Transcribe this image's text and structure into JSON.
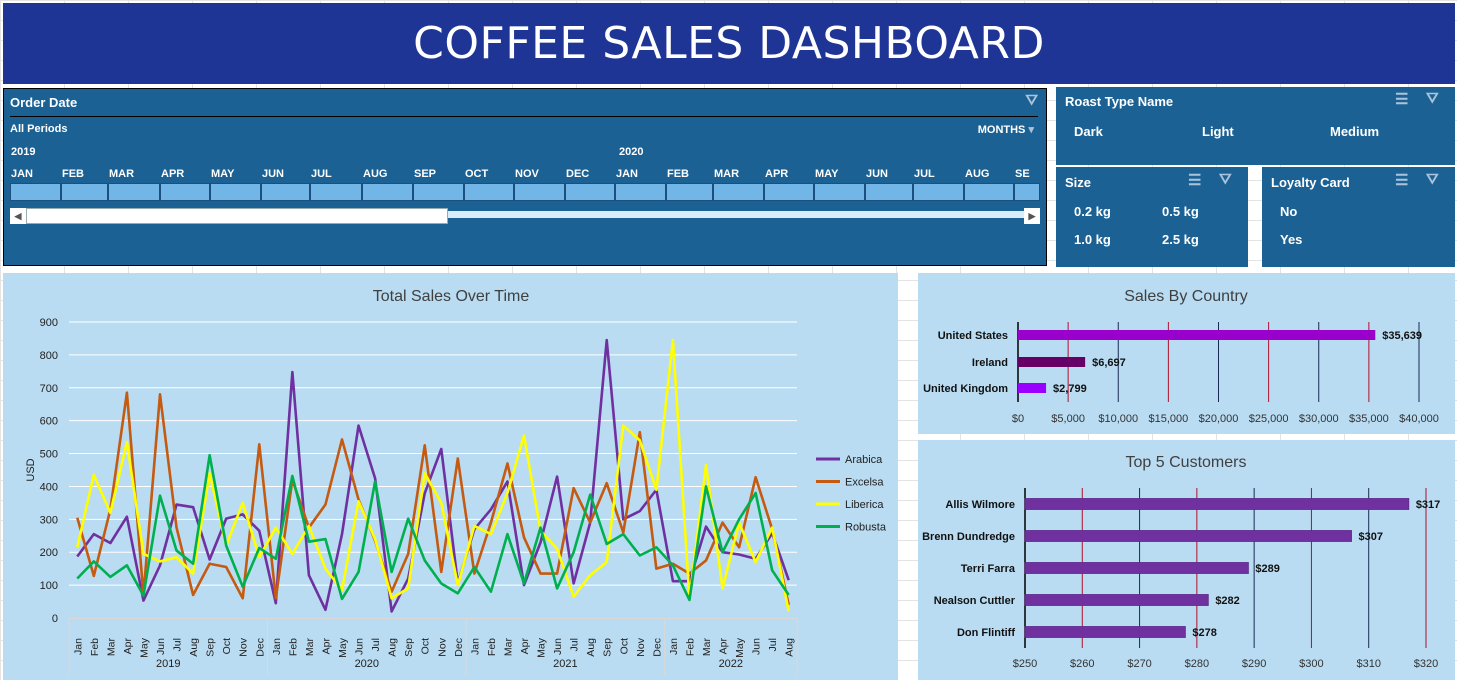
{
  "title": "COFFEE SALES DASHBOARD",
  "timeline": {
    "header": "Order Date",
    "period": "All Periods",
    "level": "MONTHS",
    "years": [
      "2019",
      "2020"
    ],
    "months": [
      "JAN",
      "FEB",
      "MAR",
      "APR",
      "MAY",
      "JUN",
      "JUL",
      "AUG",
      "SEP",
      "OCT",
      "NOV",
      "DEC",
      "JAN",
      "FEB",
      "MAR",
      "APR",
      "MAY",
      "JUN",
      "JUL",
      "AUG",
      "SE"
    ]
  },
  "roast": {
    "header": "Roast Type Name",
    "items": [
      "Dark",
      "Light",
      "Medium"
    ]
  },
  "size": {
    "header": "Size",
    "items": [
      "0.2 kg",
      "0.5 kg",
      "1.0 kg",
      "2.5 kg"
    ]
  },
  "loyalty": {
    "header": "Loyalty Card",
    "items": [
      "No",
      "Yes"
    ]
  },
  "colors": {
    "title_bar": "#1f3596",
    "slicer": "#1b6194",
    "panel": "#b9dcf2",
    "Arabica": "#7030a0",
    "Excelsa": "#c55a11",
    "Liberica": "#ffff00",
    "Robusta": "#00b050"
  },
  "chart_data": [
    {
      "type": "line",
      "title": "Total Sales Over Time",
      "ylabel": "USD",
      "ylim": [
        0,
        900
      ],
      "yticks": [
        0,
        100,
        200,
        300,
        400,
        500,
        600,
        700,
        800,
        900
      ],
      "grid": true,
      "legend": "right",
      "years": [
        "2019",
        "2020",
        "2021",
        "2022"
      ],
      "months": [
        "Jan",
        "Feb",
        "Mar",
        "Apr",
        "May",
        "Jun",
        "Jul",
        "Aug",
        "Sep",
        "Oct",
        "Nov",
        "Dec",
        "Jan",
        "Feb",
        "Mar",
        "Apr",
        "May",
        "Jun",
        "Jul",
        "Aug",
        "Sep",
        "Oct",
        "Nov",
        "Dec",
        "Jan",
        "Feb",
        "Mar",
        "Apr",
        "May",
        "Jun",
        "Jul",
        "Aug",
        "Sep",
        "Oct",
        "Nov",
        "Dec",
        "Jan",
        "Feb",
        "Mar",
        "Apr",
        "May",
        "Jun",
        "Jul",
        "Aug"
      ],
      "series": [
        {
          "name": "Arabica",
          "values": [
            187,
            255,
            228,
            308,
            53,
            160,
            345,
            337,
            178,
            302,
            315,
            265,
            45,
            748,
            130,
            25,
            255,
            585,
            425,
            20,
            120,
            379,
            514,
            106,
            270,
            330,
            415,
            100,
            230,
            430,
            105,
            290,
            845,
            300,
            325,
            390,
            112,
            112,
            278,
            200,
            193,
            180,
            258,
            115
          ]
        },
        {
          "name": "Excelsa",
          "values": [
            305,
            128,
            330,
            685,
            70,
            680,
            275,
            70,
            165,
            155,
            60,
            528,
            60,
            420,
            275,
            345,
            543,
            360,
            235,
            80,
            195,
            525,
            140,
            485,
            135,
            290,
            470,
            245,
            135,
            135,
            395,
            290,
            410,
            260,
            565,
            150,
            165,
            135,
            175,
            290,
            215,
            428,
            270,
            40
          ]
        },
        {
          "name": "Liberica",
          "values": [
            215,
            435,
            320,
            535,
            195,
            172,
            185,
            135,
            440,
            220,
            350,
            185,
            275,
            195,
            280,
            150,
            85,
            355,
            240,
            60,
            90,
            440,
            350,
            100,
            280,
            255,
            380,
            555,
            265,
            210,
            65,
            130,
            170,
            585,
            540,
            390,
            845,
            60,
            465,
            90,
            290,
            170,
            275,
            20
          ]
        },
        {
          "name": "Robusta",
          "values": [
            120,
            172,
            125,
            160,
            68,
            372,
            205,
            165,
            495,
            220,
            95,
            213,
            180,
            432,
            232,
            240,
            58,
            140,
            415,
            140,
            302,
            175,
            105,
            75,
            155,
            80,
            255,
            105,
            275,
            90,
            200,
            375,
            225,
            255,
            190,
            215,
            160,
            55,
            400,
            200,
            300,
            380,
            145,
            70
          ]
        }
      ]
    },
    {
      "type": "bar",
      "title": "Sales By Country",
      "categories": [
        "United States",
        "Ireland",
        "United Kingdom"
      ],
      "values": [
        35639,
        6697,
        2799
      ],
      "labels": [
        "$35,639",
        "$6,697",
        "$2,799"
      ],
      "xlim": [
        0,
        40000
      ],
      "xticks": [
        "$0",
        "$5,000",
        "$10,000",
        "$15,000",
        "$20,000",
        "$25,000",
        "$30,000",
        "$35,000",
        "$40,000"
      ],
      "colors": [
        "#9900cc",
        "#660066",
        "#9900ff"
      ]
    },
    {
      "type": "bar",
      "title": "Top 5 Customers",
      "categories": [
        "Allis Wilmore",
        "Brenn Dundredge",
        "Terri Farra",
        "Nealson Cuttler",
        "Don Flintiff"
      ],
      "values": [
        317,
        307,
        289,
        282,
        278
      ],
      "labels": [
        "$317",
        "$307",
        "$289",
        "$282",
        "$278"
      ],
      "xlim": [
        250,
        320
      ],
      "xticks": [
        "$250",
        "$260",
        "$270",
        "$280",
        "$290",
        "$300",
        "$310",
        "$320"
      ],
      "colors": [
        "#7030a0"
      ]
    }
  ]
}
